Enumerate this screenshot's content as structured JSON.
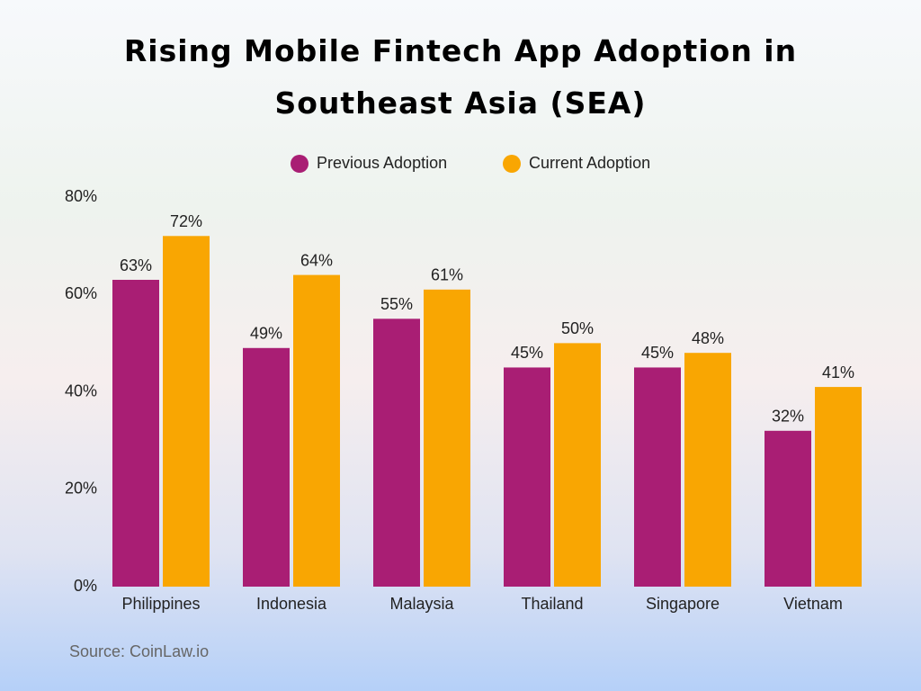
{
  "chart_data": {
    "type": "bar",
    "title": "Rising Mobile Fintech App Adoption in Southeast Asia (SEA)",
    "source": "Source: CoinLaw.io",
    "categories": [
      "Philippines",
      "Indonesia",
      "Malaysia",
      "Thailand",
      "Singapore",
      "Vietnam"
    ],
    "series": [
      {
        "name": "Previous Adoption",
        "color": "#a91e74",
        "values": [
          63,
          49,
          55,
          45,
          45,
          32
        ],
        "value_labels": [
          "63%",
          "49%",
          "55%",
          "45%",
          "45%",
          "32%"
        ]
      },
      {
        "name": "Current Adoption",
        "color": "#f9a602",
        "values": [
          72,
          64,
          61,
          50,
          48,
          41
        ],
        "value_labels": [
          "72%",
          "64%",
          "61%",
          "50%",
          "48%",
          "41%"
        ]
      }
    ],
    "ylim": [
      0,
      80
    ],
    "yticks": [
      {
        "value": 0,
        "label": "0%"
      },
      {
        "value": 20,
        "label": "20%"
      },
      {
        "value": 40,
        "label": "40%"
      },
      {
        "value": 60,
        "label": "60%"
      },
      {
        "value": 80,
        "label": "80%"
      }
    ]
  }
}
